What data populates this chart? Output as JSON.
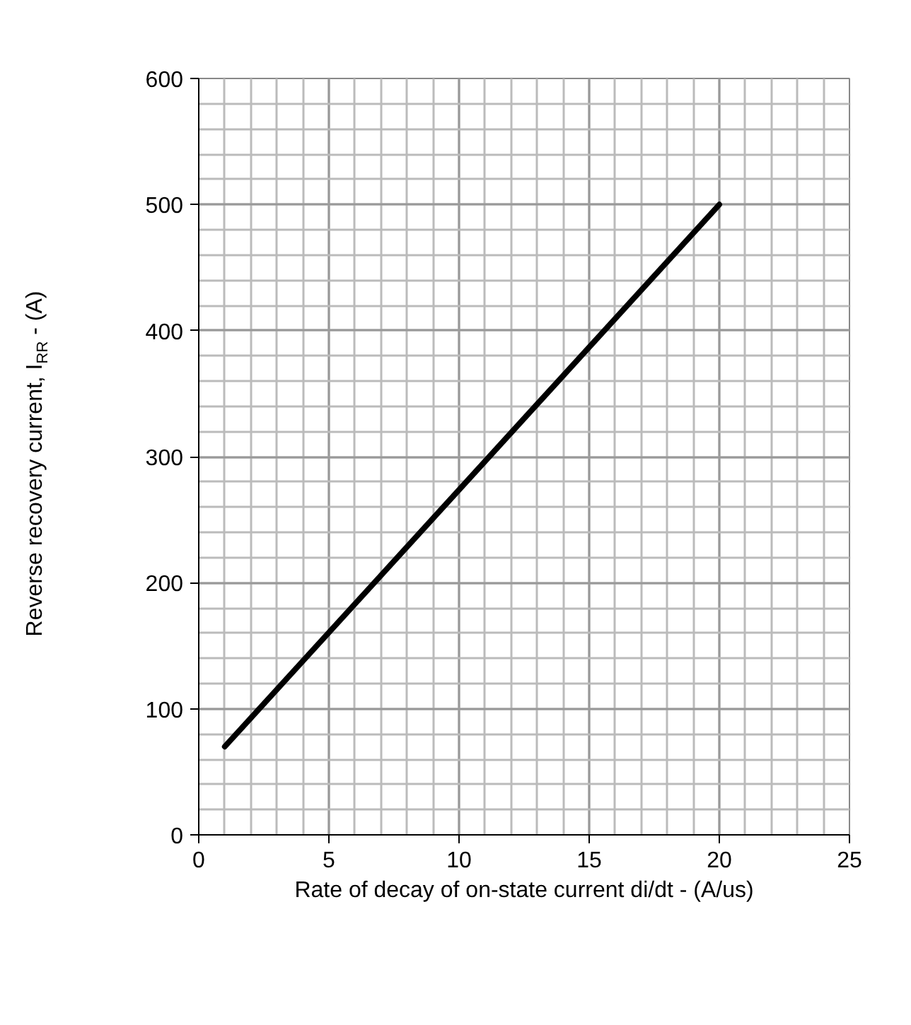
{
  "chart_data": {
    "type": "line",
    "xlabel": "Rate of decay of on-state current di/dt - (A/us)",
    "ylabel": "Reverse recovery current, I$_{RR}$ - (A)",
    "x": [
      1,
      20
    ],
    "series": [
      {
        "color": "#000000",
        "values": [
          70,
          500
        ]
      }
    ],
    "xlim": [
      0,
      25
    ],
    "ylim": [
      0,
      600
    ],
    "xticks": [
      0,
      5,
      10,
      15,
      20,
      25
    ],
    "yticks": [
      0,
      100,
      200,
      300,
      400,
      500,
      600
    ],
    "grid": true,
    "marker": "none",
    "line_style": "solid"
  }
}
